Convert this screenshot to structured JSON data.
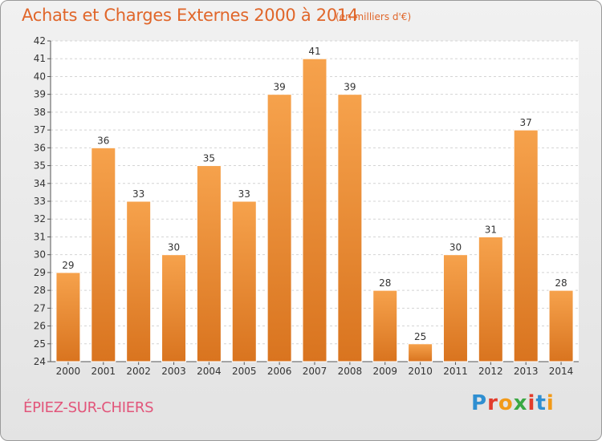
{
  "header": {
    "title": "Achats et Charges Externes 2000 à 2014",
    "subtitle": "(en milliers d'€)"
  },
  "footer": {
    "town": "ÉPIEZ-SUR-CHIERS",
    "logo_text": "Proxiti"
  },
  "colors": {
    "title": "#e0662a",
    "town": "#e2557a",
    "bar_top": "#f6a24c",
    "bar_bottom": "#d9741f"
  },
  "chart_data": {
    "type": "bar",
    "title": "Achats et Charges Externes 2000 à 2014",
    "xlabel": "",
    "ylabel": "",
    "categories": [
      "2000",
      "2001",
      "2002",
      "2003",
      "2004",
      "2005",
      "2006",
      "2007",
      "2008",
      "2009",
      "2010",
      "2011",
      "2012",
      "2013",
      "2014"
    ],
    "values": [
      29,
      36,
      33,
      30,
      35,
      33,
      39,
      41,
      39,
      28,
      25,
      30,
      31,
      37,
      28
    ],
    "ylim": [
      24,
      42
    ],
    "yticks": [
      24,
      25,
      26,
      27,
      28,
      29,
      30,
      31,
      32,
      33,
      34,
      35,
      36,
      37,
      38,
      39,
      40,
      41,
      42
    ],
    "grid": true,
    "legend": "none"
  }
}
